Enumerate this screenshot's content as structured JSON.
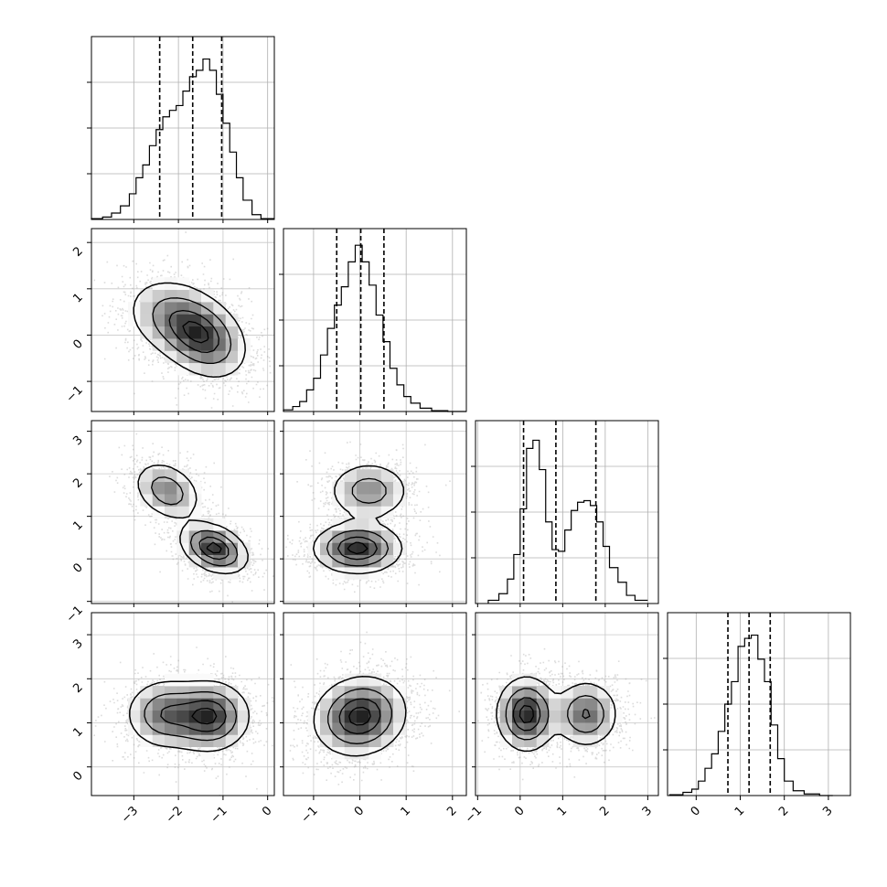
{
  "chart_data": {
    "type": "corner",
    "title": "",
    "parameters": [
      "",
      "",
      "",
      ""
    ],
    "axes": [
      {
        "range": [
          -3.95,
          0.15
        ],
        "ticks": [
          -3,
          -2,
          -1,
          0
        ],
        "tick_labels": [
          "−3",
          "−2",
          "−1",
          "0"
        ]
      },
      {
        "range": [
          -1.65,
          2.3
        ],
        "ticks": [
          -1,
          0,
          1,
          2
        ],
        "tick_labels": [
          "−1",
          "0",
          "1",
          "2"
        ]
      },
      {
        "range": [
          -1.05,
          3.25
        ],
        "ticks": [
          -1,
          0,
          1,
          2,
          3
        ],
        "tick_labels": [
          "−1",
          "0",
          "1",
          "2",
          "3"
        ]
      },
      {
        "range": [
          -0.65,
          3.5
        ],
        "ticks": [
          0,
          1,
          2,
          3
        ],
        "tick_labels": [
          "0",
          "1",
          "2",
          "3"
        ]
      }
    ],
    "histograms": [
      {
        "bin_edges": [
          -3.95,
          -3.7,
          -3.5,
          -3.3,
          -3.1,
          -2.95,
          -2.8,
          -2.65,
          -2.5,
          -2.35,
          -2.2,
          -2.05,
          -1.9,
          -1.75,
          -1.6,
          -1.45,
          -1.3,
          -1.15,
          -1.0,
          -0.85,
          -0.7,
          -0.55,
          -0.35,
          -0.15,
          0.15
        ],
        "counts": [
          0.005,
          0.015,
          0.04,
          0.085,
          0.16,
          0.26,
          0.34,
          0.46,
          0.56,
          0.64,
          0.68,
          0.71,
          0.8,
          0.89,
          0.93,
          1.0,
          0.93,
          0.78,
          0.6,
          0.42,
          0.26,
          0.12,
          0.03,
          0.005
        ],
        "ylim": [
          0,
          1.14
        ],
        "quantiles": [
          -2.42,
          -1.68,
          -1.03
        ]
      },
      {
        "bin_edges": [
          -1.65,
          -1.45,
          -1.3,
          -1.15,
          -1.0,
          -0.85,
          -0.7,
          -0.55,
          -0.4,
          -0.25,
          -0.1,
          0.05,
          0.2,
          0.35,
          0.5,
          0.65,
          0.8,
          0.95,
          1.1,
          1.3,
          1.55,
          1.9,
          2.3
        ],
        "counts": [
          0.01,
          0.03,
          0.06,
          0.13,
          0.2,
          0.34,
          0.5,
          0.64,
          0.75,
          0.9,
          1.0,
          0.9,
          0.76,
          0.58,
          0.42,
          0.26,
          0.16,
          0.09,
          0.05,
          0.02,
          0.005,
          0.0
        ],
        "ylim": [
          0,
          1.1
        ],
        "quantiles": [
          -0.5,
          0.02,
          0.52
        ]
      },
      {
        "bin_edges": [
          -0.75,
          -0.5,
          -0.3,
          -0.15,
          0.0,
          0.15,
          0.3,
          0.45,
          0.6,
          0.75,
          0.9,
          1.05,
          1.2,
          1.35,
          1.5,
          1.65,
          1.8,
          1.95,
          2.1,
          2.3,
          2.5,
          2.7,
          3.0
        ],
        "counts": [
          0.02,
          0.06,
          0.15,
          0.3,
          0.58,
          0.95,
          1.0,
          0.82,
          0.5,
          0.33,
          0.32,
          0.45,
          0.57,
          0.62,
          0.63,
          0.6,
          0.5,
          0.35,
          0.22,
          0.13,
          0.05,
          0.02
        ],
        "ylim": [
          0,
          1.12
        ],
        "quantiles": [
          0.08,
          0.84,
          1.78
        ]
      },
      {
        "bin_edges": [
          -0.6,
          -0.3,
          -0.1,
          0.05,
          0.2,
          0.35,
          0.5,
          0.65,
          0.8,
          0.95,
          1.1,
          1.25,
          1.4,
          1.55,
          1.7,
          1.85,
          2.0,
          2.2,
          2.45,
          2.8,
          3.1
        ],
        "counts": [
          0.005,
          0.02,
          0.04,
          0.09,
          0.17,
          0.26,
          0.4,
          0.57,
          0.71,
          0.93,
          0.98,
          1.0,
          0.85,
          0.71,
          0.44,
          0.23,
          0.09,
          0.03,
          0.01,
          0.0
        ],
        "ylim": [
          0,
          1.14
        ],
        "quantiles": [
          0.72,
          1.2,
          1.68
        ]
      }
    ],
    "joint_pairs": [
      {
        "x": 0,
        "y": 1,
        "components": [
          {
            "mx": -1.45,
            "my": -0.05,
            "sx": 0.5,
            "sy": 0.45,
            "rho": -0.3,
            "w": 1.0
          },
          {
            "mx": -2.15,
            "my": 0.4,
            "sx": 0.55,
            "sy": 0.45,
            "rho": -0.2,
            "w": 0.55
          }
        ]
      },
      {
        "x": 0,
        "y": 2,
        "components": [
          {
            "mx": -1.2,
            "my": 0.25,
            "sx": 0.38,
            "sy": 0.3,
            "rho": -0.35,
            "w": 1.0
          },
          {
            "mx": -2.25,
            "my": 1.6,
            "sx": 0.38,
            "sy": 0.35,
            "rho": -0.3,
            "w": 0.6
          }
        ]
      },
      {
        "x": 1,
        "y": 2,
        "components": [
          {
            "mx": -0.05,
            "my": 0.25,
            "sx": 0.48,
            "sy": 0.3,
            "rho": 0.0,
            "w": 1.0
          },
          {
            "mx": 0.2,
            "my": 1.6,
            "sx": 0.45,
            "sy": 0.35,
            "rho": 0.0,
            "w": 0.55
          }
        ]
      },
      {
        "x": 0,
        "y": 3,
        "components": [
          {
            "mx": -1.3,
            "my": 1.15,
            "sx": 0.45,
            "sy": 0.4,
            "rho": 0.0,
            "w": 1.0
          },
          {
            "mx": -2.3,
            "my": 1.2,
            "sx": 0.45,
            "sy": 0.4,
            "rho": 0.0,
            "w": 0.7
          }
        ]
      },
      {
        "x": 1,
        "y": 3,
        "components": [
          {
            "mx": 0.0,
            "my": 1.15,
            "sx": 0.5,
            "sy": 0.45,
            "rho": 0.1,
            "w": 1.0
          }
        ]
      },
      {
        "x": 2,
        "y": 3,
        "components": [
          {
            "mx": 0.15,
            "my": 1.2,
            "sx": 0.35,
            "sy": 0.42,
            "rho": 0.0,
            "w": 1.0
          },
          {
            "mx": 1.55,
            "my": 1.2,
            "sx": 0.38,
            "sy": 0.38,
            "rho": 0.0,
            "w": 0.7
          }
        ]
      }
    ],
    "contour_levels": [
      0.14,
      0.39,
      0.68,
      0.9
    ],
    "grid": true,
    "legend": "none"
  }
}
